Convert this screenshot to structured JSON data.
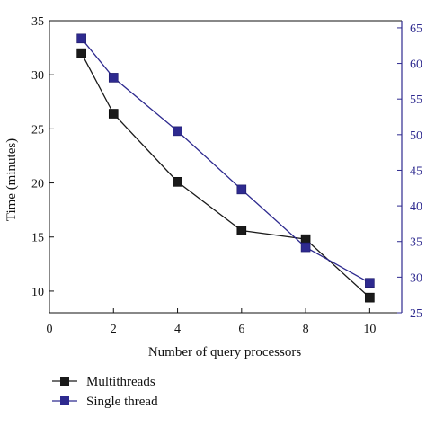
{
  "chart_data": {
    "type": "line",
    "title": "",
    "xlabel": "Number of query processors",
    "ylabel": "Time (minutes)",
    "y2label": "",
    "xlim": [
      0,
      11
    ],
    "ylim": [
      8,
      35
    ],
    "y2lim": [
      25,
      66
    ],
    "x_ticks": [
      0,
      2,
      4,
      6,
      8,
      10
    ],
    "y_ticks": [
      10,
      15,
      20,
      25,
      30,
      35
    ],
    "y2_ticks": [
      25,
      30,
      35,
      40,
      45,
      50,
      55,
      60,
      65
    ],
    "x_tick_labels": [
      "0",
      "2",
      "4",
      "6",
      "8",
      "10"
    ],
    "y_tick_labels": [
      "10",
      "15",
      "20",
      "25",
      "30",
      "35"
    ],
    "y2_tick_labels": [
      "25",
      "30",
      "35",
      "40",
      "45",
      "50",
      "55",
      "60",
      "65"
    ],
    "legend_position": "bottom-left",
    "grid": false,
    "series": [
      {
        "name": "Multithreads",
        "axis": "left",
        "color": "#1a1a1a",
        "marker": "square",
        "x": [
          1,
          2,
          4,
          6,
          8,
          10
        ],
        "y": [
          32,
          26.4,
          20.1,
          15.6,
          14.8,
          9.4
        ]
      },
      {
        "name": "Single thread",
        "axis": "right",
        "color": "#2e2a8f",
        "marker": "square",
        "x": [
          1,
          2,
          4,
          6,
          8,
          10
        ],
        "y": [
          63.5,
          58,
          50.5,
          42.3,
          34.2,
          29.2
        ]
      }
    ]
  }
}
